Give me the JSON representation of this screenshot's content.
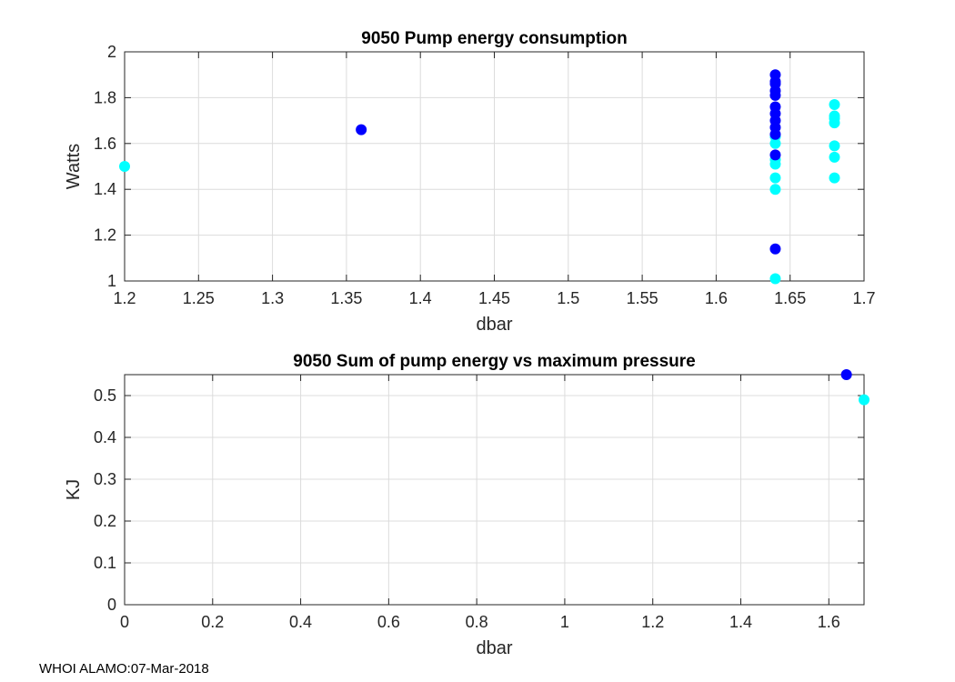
{
  "chart_data": [
    {
      "type": "scatter",
      "title": "9050 Pump energy consumption",
      "xlabel": "dbar",
      "ylabel": "Watts",
      "xlim": [
        1.2,
        1.7
      ],
      "ylim": [
        1,
        2
      ],
      "xticks": [
        1.2,
        1.25,
        1.3,
        1.35,
        1.4,
        1.45,
        1.5,
        1.55,
        1.6,
        1.65,
        1.7
      ],
      "xtick_labels": [
        "1.2",
        "1.25",
        "1.3",
        "1.35",
        "1.4",
        "1.45",
        "1.5",
        "1.55",
        "1.6",
        "1.65",
        "1.7"
      ],
      "yticks": [
        1,
        1.2,
        1.4,
        1.6,
        1.8,
        2
      ],
      "ytick_labels": [
        "1",
        "1.2",
        "1.4",
        "1.6",
        "1.8",
        "2"
      ],
      "grid": true,
      "series": [
        {
          "name": "cyan",
          "color": "#00ffff",
          "points": [
            [
              1.2,
              1.5
            ],
            [
              1.64,
              1.01
            ],
            [
              1.64,
              1.4
            ],
            [
              1.64,
              1.45
            ],
            [
              1.64,
              1.51
            ],
            [
              1.64,
              1.53
            ],
            [
              1.64,
              1.6
            ],
            [
              1.64,
              1.63
            ],
            [
              1.68,
              1.45
            ],
            [
              1.68,
              1.54
            ],
            [
              1.68,
              1.59
            ],
            [
              1.68,
              1.69
            ],
            [
              1.68,
              1.71
            ],
            [
              1.68,
              1.72
            ],
            [
              1.68,
              1.77
            ]
          ]
        },
        {
          "name": "blue",
          "color": "#0000ff",
          "points": [
            [
              1.36,
              1.66
            ],
            [
              1.64,
              1.14
            ],
            [
              1.64,
              1.55
            ],
            [
              1.64,
              1.64
            ],
            [
              1.64,
              1.67
            ],
            [
              1.64,
              1.7
            ],
            [
              1.64,
              1.73
            ],
            [
              1.64,
              1.76
            ],
            [
              1.64,
              1.81
            ],
            [
              1.64,
              1.83
            ],
            [
              1.64,
              1.86
            ],
            [
              1.64,
              1.87
            ],
            [
              1.64,
              1.9
            ]
          ]
        }
      ]
    },
    {
      "type": "scatter",
      "title": "9050 Sum of pump energy vs maximum pressure",
      "xlabel": "dbar",
      "ylabel": "KJ",
      "xlim": [
        0,
        1.68
      ],
      "ylim": [
        0,
        0.55
      ],
      "xticks": [
        0,
        0.2,
        0.4,
        0.6,
        0.8,
        1,
        1.2,
        1.4,
        1.6
      ],
      "xtick_labels": [
        "0",
        "0.2",
        "0.4",
        "0.6",
        "0.8",
        "1",
        "1.2",
        "1.4",
        "1.6"
      ],
      "yticks": [
        0,
        0.1,
        0.2,
        0.3,
        0.4,
        0.5
      ],
      "ytick_labels": [
        "0",
        "0.1",
        "0.2",
        "0.3",
        "0.4",
        "0.5"
      ],
      "grid": true,
      "series": [
        {
          "name": "blue",
          "color": "#0000ff",
          "points": [
            [
              1.64,
              0.55
            ]
          ]
        },
        {
          "name": "cyan",
          "color": "#00ffff",
          "points": [
            [
              1.68,
              0.49
            ]
          ]
        }
      ]
    }
  ],
  "footer": "WHOI ALAMO:07-Mar-2018"
}
